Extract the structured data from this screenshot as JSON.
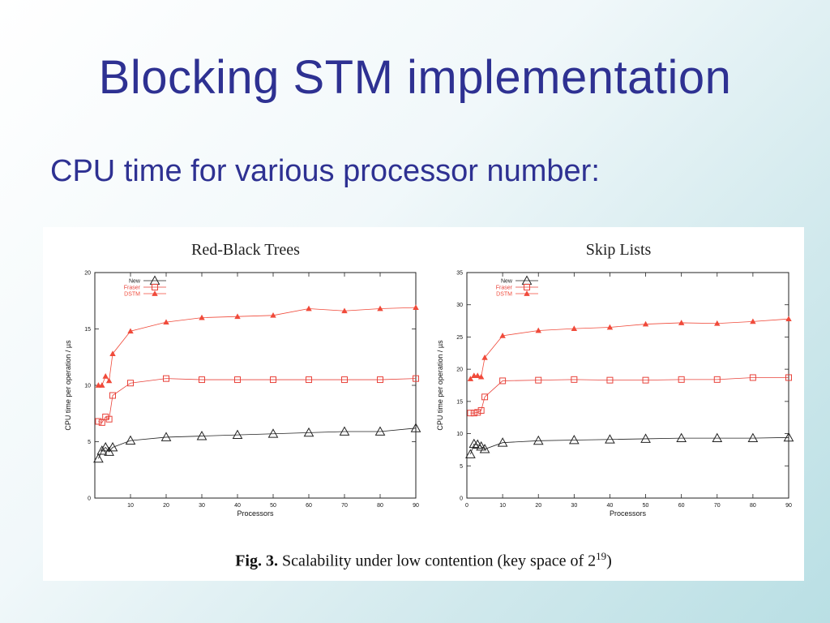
{
  "slide": {
    "title": "Blocking STM implementation",
    "subtitle": "CPU time for various processor number:"
  },
  "figure": {
    "caption_label": "Fig. 3.",
    "caption_text": "Scalability under low contention (key space of 2",
    "caption_exponent": "19",
    "caption_close": ")"
  },
  "colors": {
    "new": "#222222",
    "fraser": "#e8423a",
    "dstm": "#f04a3a",
    "title": "#2e3192"
  },
  "chart_data": [
    {
      "type": "line",
      "title": "Red-Black Trees",
      "xlabel": "Processors",
      "ylabel": "CPU time per operation / µs",
      "xlim": [
        0,
        90
      ],
      "ylim": [
        0,
        20
      ],
      "xticks": [
        10,
        20,
        30,
        40,
        50,
        60,
        70,
        80,
        90
      ],
      "yticks": [
        0,
        5,
        10,
        15,
        20
      ],
      "grid": false,
      "legend": "top-left",
      "series": [
        {
          "name": "New",
          "marker": "triangle-open",
          "x": [
            1,
            2,
            3,
            4,
            5,
            10,
            20,
            30,
            40,
            50,
            60,
            70,
            80,
            90
          ],
          "y": [
            3.5,
            4.2,
            4.5,
            4.1,
            4.5,
            5.1,
            5.4,
            5.5,
            5.6,
            5.7,
            5.8,
            5.9,
            5.9,
            6.2
          ]
        },
        {
          "name": "Fraser",
          "marker": "square-open",
          "x": [
            1,
            2,
            3,
            4,
            5,
            10,
            20,
            30,
            40,
            50,
            60,
            70,
            80,
            90
          ],
          "y": [
            6.8,
            6.7,
            7.2,
            7.0,
            9.1,
            10.2,
            10.6,
            10.5,
            10.5,
            10.5,
            10.5,
            10.5,
            10.5,
            10.6
          ]
        },
        {
          "name": "DSTM",
          "marker": "triangle-filled",
          "x": [
            1,
            2,
            3,
            4,
            5,
            10,
            20,
            30,
            40,
            50,
            60,
            70,
            80,
            90
          ],
          "y": [
            10.0,
            10.0,
            10.8,
            10.4,
            12.8,
            14.8,
            15.6,
            16.0,
            16.1,
            16.2,
            16.8,
            16.6,
            16.8,
            16.9
          ]
        }
      ]
    },
    {
      "type": "line",
      "title": "Skip Lists",
      "xlabel": "Processors",
      "ylabel": "CPU time per operation / µs",
      "xlim": [
        0,
        90
      ],
      "ylim": [
        0,
        35
      ],
      "xticks": [
        0,
        10,
        20,
        30,
        40,
        50,
        60,
        70,
        80,
        90
      ],
      "yticks": [
        0,
        5,
        10,
        15,
        20,
        25,
        30,
        35
      ],
      "grid": false,
      "legend": "top-left",
      "series": [
        {
          "name": "New",
          "marker": "triangle-open",
          "x": [
            1,
            2,
            3,
            4,
            5,
            10,
            20,
            30,
            40,
            50,
            60,
            70,
            80,
            90
          ],
          "y": [
            6.8,
            8.4,
            8.3,
            8.0,
            7.6,
            8.6,
            8.9,
            9.0,
            9.1,
            9.2,
            9.3,
            9.3,
            9.3,
            9.4
          ]
        },
        {
          "name": "Fraser",
          "marker": "square-open",
          "x": [
            1,
            2,
            3,
            4,
            5,
            10,
            20,
            30,
            40,
            50,
            60,
            70,
            80,
            90
          ],
          "y": [
            13.2,
            13.2,
            13.3,
            13.6,
            15.7,
            18.2,
            18.3,
            18.4,
            18.3,
            18.3,
            18.4,
            18.4,
            18.7,
            18.7
          ]
        },
        {
          "name": "DSTM",
          "marker": "triangle-filled",
          "x": [
            1,
            2,
            3,
            4,
            5,
            10,
            20,
            30,
            40,
            50,
            60,
            70,
            80,
            90
          ],
          "y": [
            18.5,
            19.0,
            19.0,
            18.8,
            21.8,
            25.2,
            26.0,
            26.3,
            26.5,
            27.0,
            27.2,
            27.1,
            27.4,
            27.8
          ]
        }
      ]
    }
  ]
}
